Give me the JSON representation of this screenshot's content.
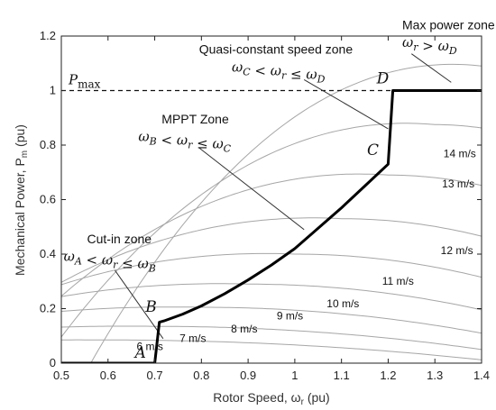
{
  "chart_data": {
    "type": "line",
    "title": "",
    "xlabel": "Rotor Speed, ω",
    "xlabel_sub": "r",
    "xlabel_unit": " (pu)",
    "ylabel": "Mechanical Power, P",
    "ylabel_sub": "m",
    "ylabel_unit": " (pu)",
    "xlim": [
      0.5,
      1.4
    ],
    "ylim": [
      0,
      1.2
    ],
    "xticks": [
      "0.5",
      "0.6",
      "0.7",
      "0.8",
      "0.9",
      "1",
      "1.1",
      "1.2",
      "1.3",
      "1.4"
    ],
    "yticks": [
      "0",
      "0.2",
      "0.4",
      "0.6",
      "0.8",
      "1",
      "1.2"
    ],
    "grid": false,
    "power_curves": [
      {
        "label": "6 m/s",
        "peak_x": 0.6,
        "peak_y": 0.085,
        "label_x": 0.718,
        "label_y": 0.048
      },
      {
        "label": "7 m/s",
        "peak_x": 0.7,
        "peak_y": 0.135,
        "label_x": 0.81,
        "label_y": 0.077
      },
      {
        "label": "8 m/s",
        "peak_x": 0.8,
        "peak_y": 0.205,
        "label_x": 0.92,
        "label_y": 0.112
      },
      {
        "label": "9 m/s",
        "peak_x": 0.9,
        "peak_y": 0.29,
        "label_x": 1.018,
        "label_y": 0.16
      },
      {
        "label": "10 m/s",
        "peak_x": 1.0,
        "peak_y": 0.4,
        "label_x": 1.138,
        "label_y": 0.205
      },
      {
        "label": "11 m/s",
        "peak_x": 1.1,
        "peak_y": 0.53,
        "label_x": 1.255,
        "label_y": 0.288
      },
      {
        "label": "12 m/s",
        "peak_x": 1.2,
        "peak_y": 0.69,
        "label_x": 1.382,
        "label_y": 0.4
      },
      {
        "label": "13 m/s",
        "peak_x": 1.3,
        "peak_y": 0.875,
        "label_x": 1.385,
        "label_y": 0.645
      },
      {
        "label": "14 m/s",
        "peak_x": 1.4,
        "peak_y": 1.09,
        "label_x": 1.388,
        "label_y": 0.755
      }
    ],
    "pmax_line": {
      "y": 1.0,
      "label": "P",
      "label_sub": "max"
    },
    "operating_curve": [
      [
        0.5,
        0.0
      ],
      [
        0.7,
        0.0
      ],
      [
        0.71,
        0.15
      ],
      [
        0.72,
        0.155
      ],
      [
        0.76,
        0.18
      ],
      [
        0.8,
        0.21
      ],
      [
        0.85,
        0.255
      ],
      [
        0.9,
        0.305
      ],
      [
        0.95,
        0.36
      ],
      [
        1.0,
        0.42
      ],
      [
        1.05,
        0.495
      ],
      [
        1.1,
        0.57
      ],
      [
        1.15,
        0.65
      ],
      [
        1.2,
        0.73
      ],
      [
        1.21,
        1.0
      ],
      [
        1.4,
        1.0
      ]
    ],
    "points": [
      {
        "label": "A",
        "x": 0.7,
        "y": 0.0
      },
      {
        "label": "B",
        "x": 0.715,
        "y": 0.155
      },
      {
        "label": "C",
        "x": 1.205,
        "y": 0.73
      },
      {
        "label": "D",
        "x": 1.21,
        "y": 1.0
      }
    ],
    "zones": [
      {
        "title": "Cut-in zone",
        "condition": "ω_A < ω_r ≤ ω_B",
        "title_x": 0.555,
        "title_y": 0.44,
        "cond_x": 0.505,
        "cond_y": 0.375,
        "arrow_from": [
          0.615,
          0.34
        ],
        "arrow_to": [
          0.718,
          0.09
        ]
      },
      {
        "title": "MPPT Zone",
        "condition": "ω_B < ω_r ≤ ω_C",
        "title_x": 0.715,
        "title_y": 0.88,
        "cond_x": 0.665,
        "cond_y": 0.815,
        "arrow_from": [
          0.795,
          0.79
        ],
        "arrow_to": [
          1.02,
          0.49
        ]
      },
      {
        "title": "Quasi-constant speed zone",
        "condition": "ω_C < ω_r ≤ ω_D",
        "title_x": 0.795,
        "title_y": 1.135,
        "cond_x": 0.865,
        "cond_y": 1.07,
        "arrow_from": [
          1.02,
          1.04
        ],
        "arrow_to": [
          1.2,
          0.86
        ]
      },
      {
        "title": "Max power zone",
        "condition": "ω_r > ω_D",
        "title_x": 1.23,
        "title_y": 1.225,
        "cond_x": 1.23,
        "cond_y": 1.16,
        "arrow_from": [
          1.25,
          1.135
        ],
        "arrow_to": [
          1.335,
          1.03
        ]
      }
    ]
  }
}
